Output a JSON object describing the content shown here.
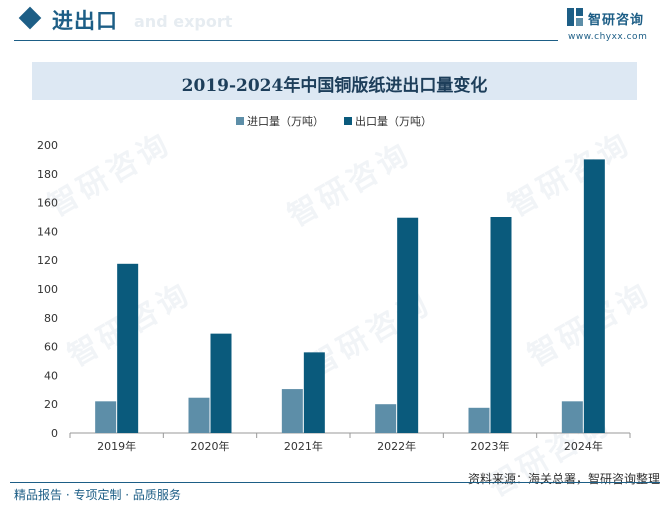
{
  "header": {
    "title": "进出口",
    "subtitle": "and export"
  },
  "brand": {
    "name": "智研咨询",
    "url": "www.chyxx.com",
    "watermark": "智研咨询"
  },
  "colors": {
    "primary": "#1d5e86",
    "import": "#5d8ea8",
    "export": "#0a5a7c",
    "title_band": "#dde8f3"
  },
  "chart_data": {
    "type": "bar",
    "title": "2019-2024年中国铜版纸进出口量变化",
    "categories": [
      "2019年",
      "2020年",
      "2021年",
      "2022年",
      "2023年",
      "2024年"
    ],
    "series": [
      {
        "name": "进口量（万吨）",
        "values": [
          22,
          24.5,
          30.5,
          20,
          17.5,
          22
        ]
      },
      {
        "name": "出口量（万吨）",
        "values": [
          117.5,
          69,
          56,
          149.5,
          150,
          190
        ]
      }
    ],
    "y_ticks": [
      0,
      20,
      40,
      60,
      80,
      100,
      120,
      140,
      160,
      180,
      200
    ],
    "ylim": [
      0,
      200
    ],
    "grid": false,
    "legend": "top-center"
  },
  "footer": {
    "source": "资料来源：海关总署，智研咨询整理",
    "tagline": "精品报告 · 专项定制 · 品质服务"
  }
}
